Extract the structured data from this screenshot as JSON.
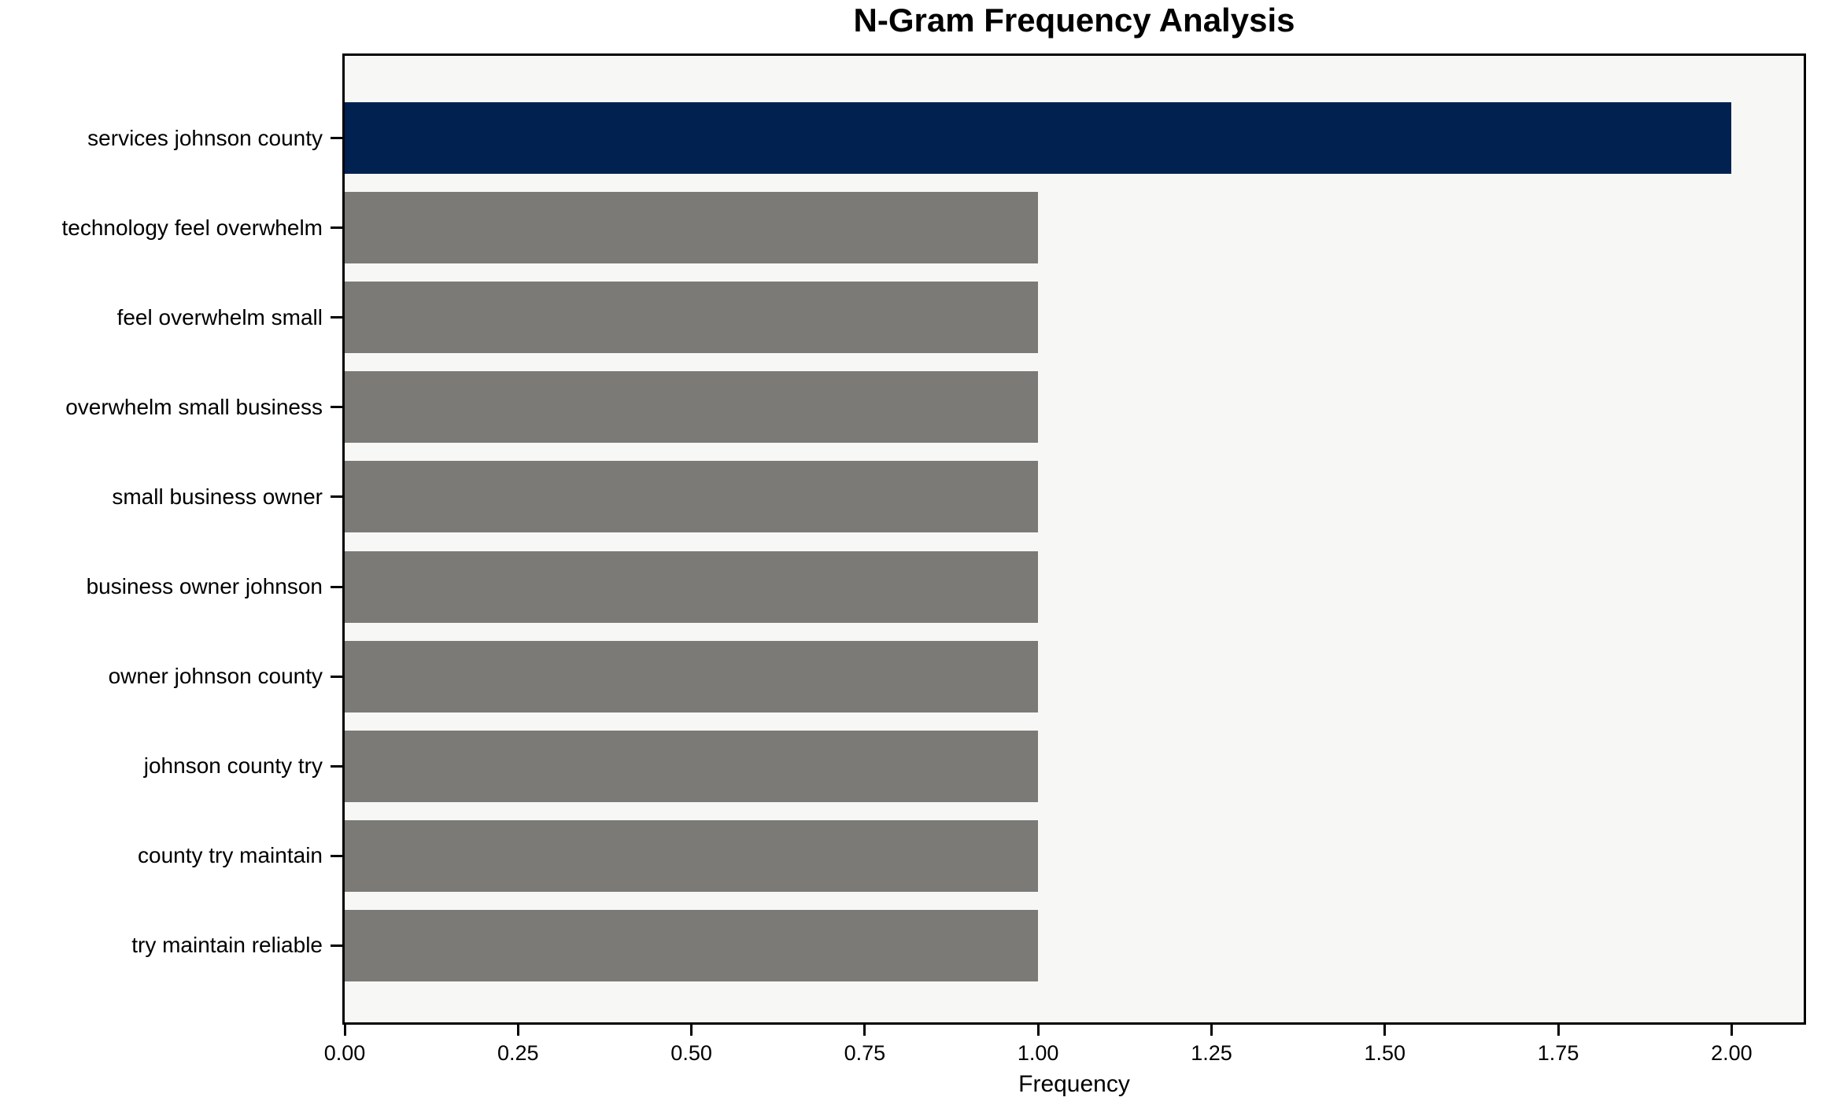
{
  "title": "N-Gram Frequency Analysis",
  "chart_data": {
    "type": "bar",
    "orientation": "horizontal",
    "title": "N-Gram Frequency Analysis",
    "xlabel": "Frequency",
    "ylabel": "",
    "categories": [
      "services johnson county",
      "technology feel overwhelm",
      "feel overwhelm small",
      "overwhelm small business",
      "small business owner",
      "business owner johnson",
      "owner johnson county",
      "johnson county try",
      "county try maintain",
      "try maintain reliable"
    ],
    "values": [
      2.0,
      1.0,
      1.0,
      1.0,
      1.0,
      1.0,
      1.0,
      1.0,
      1.0,
      1.0
    ],
    "bar_colors": [
      "#012250",
      "#7b7a76",
      "#7b7a76",
      "#7b7a76",
      "#7b7a76",
      "#7b7a76",
      "#7b7a76",
      "#7b7a76",
      "#7b7a76",
      "#7b7a76"
    ],
    "highlight_color": "#012250",
    "base_color": "#7b7a76",
    "plot_background": "#f7f7f6",
    "figure_background": "#ffffff",
    "spine_color": "#000000",
    "xlim": [
      0,
      2.104
    ],
    "xticks": [
      0.0,
      0.25,
      0.5,
      0.75,
      1.0,
      1.25,
      1.5,
      1.75,
      2.0
    ],
    "xtick_labels": [
      "0.00",
      "0.25",
      "0.50",
      "0.75",
      "1.00",
      "1.25",
      "1.50",
      "1.75",
      "2.00"
    ],
    "grid": false,
    "legend": null
  }
}
